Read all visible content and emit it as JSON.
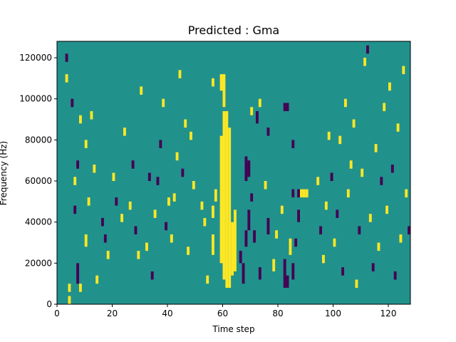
{
  "chart_data": {
    "type": "heatmap",
    "title": "Predicted : Gma",
    "xlabel": "Time step",
    "ylabel": "Frequency (Hz)",
    "xlim": [
      0,
      128
    ],
    "ylim": [
      0,
      128000
    ],
    "grid": false,
    "colormap": "viridis",
    "levels": [
      -1,
      0,
      1
    ],
    "level_colors": {
      "-1": "#440154",
      "0": "#21918c",
      "1": "#fde725"
    },
    "background_level": 0,
    "x_ticks": [
      0,
      20,
      40,
      60,
      80,
      100,
      120
    ],
    "x_tick_labels": [
      "0",
      "20",
      "40",
      "60",
      "80",
      "100",
      "120"
    ],
    "y_ticks": [
      0,
      20000,
      40000,
      60000,
      80000,
      100000,
      120000
    ],
    "y_tick_labels": [
      "0",
      "20000",
      "40000",
      "60000",
      "80000",
      "100000",
      "120000"
    ],
    "cells": [
      {
        "t": 60,
        "f0": 12000,
        "f1": 94000,
        "v": 1
      },
      {
        "t": 61,
        "f0": 8000,
        "f1": 94000,
        "v": 1
      },
      {
        "t": 62,
        "f0": 8000,
        "f1": 86000,
        "v": 1
      },
      {
        "t": 59,
        "f0": 20000,
        "f1": 82000,
        "v": 1
      },
      {
        "t": 63,
        "f0": 14000,
        "f1": 40000,
        "v": 1
      },
      {
        "t": 64,
        "f0": 16000,
        "f1": 46000,
        "v": 1
      },
      {
        "t": 59,
        "f0": 104000,
        "f1": 112000,
        "v": 1
      },
      {
        "t": 60,
        "f0": 96000,
        "f1": 112000,
        "v": 1
      },
      {
        "t": 56,
        "f0": 24000,
        "f1": 34000,
        "v": 1
      },
      {
        "t": 56,
        "f0": 42000,
        "f1": 48000,
        "v": 1
      },
      {
        "t": 57,
        "f0": 50000,
        "f1": 56000,
        "v": 1
      },
      {
        "t": 53,
        "f0": 38000,
        "f1": 42000,
        "v": 1
      },
      {
        "t": 49,
        "f0": 56000,
        "f1": 60000,
        "v": 1
      },
      {
        "t": 48,
        "f0": 80000,
        "f1": 84000,
        "v": 1
      },
      {
        "t": 52,
        "f0": 46000,
        "f1": 50000,
        "v": 1
      },
      {
        "t": 56,
        "f0": 106000,
        "f1": 110000,
        "v": 1
      },
      {
        "t": 54,
        "f0": 10000,
        "f1": 14000,
        "v": 1
      },
      {
        "t": 68,
        "f0": 28000,
        "f1": 36000,
        "v": -1
      },
      {
        "t": 68,
        "f0": 60000,
        "f1": 72000,
        "v": -1
      },
      {
        "t": 69,
        "f0": 62000,
        "f1": 70000,
        "v": -1
      },
      {
        "t": 69,
        "f0": 36000,
        "f1": 46000,
        "v": -1
      },
      {
        "t": 67,
        "f0": 10000,
        "f1": 20000,
        "v": -1
      },
      {
        "t": 70,
        "f0": 50000,
        "f1": 54000,
        "v": -1
      },
      {
        "t": 72,
        "f0": 88000,
        "f1": 94000,
        "v": -1
      },
      {
        "t": 71,
        "f0": 30000,
        "f1": 36000,
        "v": -1
      },
      {
        "t": 66,
        "f0": 20000,
        "f1": 26000,
        "v": -1
      },
      {
        "t": 73,
        "f0": 12000,
        "f1": 18000,
        "v": -1
      },
      {
        "t": 76,
        "f0": 34000,
        "f1": 42000,
        "v": -1
      },
      {
        "t": 82,
        "f0": 8000,
        "f1": 22000,
        "v": -1
      },
      {
        "t": 83,
        "f0": 8000,
        "f1": 14000,
        "v": -1
      },
      {
        "t": 85,
        "f0": 12000,
        "f1": 20000,
        "v": -1
      },
      {
        "t": 86,
        "f0": 28000,
        "f1": 32000,
        "v": -1
      },
      {
        "t": 87,
        "f0": 40000,
        "f1": 46000,
        "v": -1
      },
      {
        "t": 85,
        "f0": 52000,
        "f1": 56000,
        "v": -1
      },
      {
        "t": 87,
        "f0": 52000,
        "f1": 56000,
        "v": -1
      },
      {
        "t": 88,
        "f0": 52000,
        "f1": 56000,
        "v": 1
      },
      {
        "t": 89,
        "f0": 52000,
        "f1": 56000,
        "v": 1
      },
      {
        "t": 90,
        "f0": 52000,
        "f1": 56000,
        "v": 1
      },
      {
        "t": 82,
        "f0": 94000,
        "f1": 98000,
        "v": -1
      },
      {
        "t": 83,
        "f0": 94000,
        "f1": 98000,
        "v": -1
      },
      {
        "t": 76,
        "f0": 82000,
        "f1": 86000,
        "v": -1
      },
      {
        "t": 85,
        "f0": 76000,
        "f1": 80000,
        "v": -1
      },
      {
        "t": 73,
        "f0": 96000,
        "f1": 100000,
        "v": 1
      },
      {
        "t": 70,
        "f0": 92000,
        "f1": 96000,
        "v": 1
      },
      {
        "t": 75,
        "f0": 56000,
        "f1": 60000,
        "v": 1
      },
      {
        "t": 79,
        "f0": 32000,
        "f1": 36000,
        "v": 1
      },
      {
        "t": 78,
        "f0": 16000,
        "f1": 22000,
        "v": 1
      },
      {
        "t": 84,
        "f0": 24000,
        "f1": 32000,
        "v": 1
      },
      {
        "t": 81,
        "f0": 44000,
        "f1": 48000,
        "v": 1
      },
      {
        "t": 4,
        "f0": 6000,
        "f1": 10000,
        "v": 1
      },
      {
        "t": 4,
        "f0": 0,
        "f1": 4000,
        "v": 1
      },
      {
        "t": 3,
        "f0": 108000,
        "f1": 112000,
        "v": 1
      },
      {
        "t": 3,
        "f0": 118000,
        "f1": 122000,
        "v": -1
      },
      {
        "t": 5,
        "f0": 96000,
        "f1": 100000,
        "v": -1
      },
      {
        "t": 6,
        "f0": 58000,
        "f1": 62000,
        "v": 1
      },
      {
        "t": 7,
        "f0": 66000,
        "f1": 70000,
        "v": -1
      },
      {
        "t": 6,
        "f0": 44000,
        "f1": 48000,
        "v": -1
      },
      {
        "t": 7,
        "f0": 10000,
        "f1": 20000,
        "v": -1
      },
      {
        "t": 8,
        "f0": 88000,
        "f1": 92000,
        "v": 1
      },
      {
        "t": 8,
        "f0": 6000,
        "f1": 10000,
        "v": 1
      },
      {
        "t": 10,
        "f0": 76000,
        "f1": 80000,
        "v": 1
      },
      {
        "t": 10,
        "f0": 28000,
        "f1": 34000,
        "v": 1
      },
      {
        "t": 11,
        "f0": 48000,
        "f1": 52000,
        "v": 1
      },
      {
        "t": 12,
        "f0": 90000,
        "f1": 94000,
        "v": 1
      },
      {
        "t": 13,
        "f0": 64000,
        "f1": 68000,
        "v": 1
      },
      {
        "t": 14,
        "f0": 10000,
        "f1": 14000,
        "v": 1
      },
      {
        "t": 16,
        "f0": 38000,
        "f1": 42000,
        "v": -1
      },
      {
        "t": 17,
        "f0": 30000,
        "f1": 34000,
        "v": -1
      },
      {
        "t": 18,
        "f0": 22000,
        "f1": 26000,
        "v": 1
      },
      {
        "t": 20,
        "f0": 60000,
        "f1": 64000,
        "v": 1
      },
      {
        "t": 21,
        "f0": 48000,
        "f1": 52000,
        "v": -1
      },
      {
        "t": 23,
        "f0": 40000,
        "f1": 44000,
        "v": 1
      },
      {
        "t": 24,
        "f0": 82000,
        "f1": 86000,
        "v": 1
      },
      {
        "t": 26,
        "f0": 46000,
        "f1": 50000,
        "v": 1
      },
      {
        "t": 27,
        "f0": 66000,
        "f1": 70000,
        "v": -1
      },
      {
        "t": 28,
        "f0": 34000,
        "f1": 38000,
        "v": -1
      },
      {
        "t": 29,
        "f0": 22000,
        "f1": 26000,
        "v": 1
      },
      {
        "t": 30,
        "f0": 102000,
        "f1": 106000,
        "v": 1
      },
      {
        "t": 32,
        "f0": 26000,
        "f1": 30000,
        "v": 1
      },
      {
        "t": 33,
        "f0": 60000,
        "f1": 64000,
        "v": -1
      },
      {
        "t": 34,
        "f0": 12000,
        "f1": 16000,
        "v": -1
      },
      {
        "t": 35,
        "f0": 42000,
        "f1": 46000,
        "v": 1
      },
      {
        "t": 36,
        "f0": 58000,
        "f1": 62000,
        "v": -1
      },
      {
        "t": 37,
        "f0": 76000,
        "f1": 80000,
        "v": -1
      },
      {
        "t": 38,
        "f0": 96000,
        "f1": 100000,
        "v": 1
      },
      {
        "t": 39,
        "f0": 36000,
        "f1": 40000,
        "v": -1
      },
      {
        "t": 40,
        "f0": 48000,
        "f1": 52000,
        "v": 1
      },
      {
        "t": 41,
        "f0": 30000,
        "f1": 34000,
        "v": 1
      },
      {
        "t": 42,
        "f0": 50000,
        "f1": 54000,
        "v": 1
      },
      {
        "t": 43,
        "f0": 70000,
        "f1": 74000,
        "v": 1
      },
      {
        "t": 44,
        "f0": 110000,
        "f1": 114000,
        "v": 1
      },
      {
        "t": 45,
        "f0": 62000,
        "f1": 66000,
        "v": -1
      },
      {
        "t": 46,
        "f0": 86000,
        "f1": 90000,
        "v": 1
      },
      {
        "t": 47,
        "f0": 24000,
        "f1": 28000,
        "v": 1
      },
      {
        "t": 94,
        "f0": 58000,
        "f1": 62000,
        "v": 1
      },
      {
        "t": 95,
        "f0": 34000,
        "f1": 38000,
        "v": -1
      },
      {
        "t": 96,
        "f0": 20000,
        "f1": 24000,
        "v": 1
      },
      {
        "t": 97,
        "f0": 46000,
        "f1": 50000,
        "v": 1
      },
      {
        "t": 98,
        "f0": 80000,
        "f1": 84000,
        "v": 1
      },
      {
        "t": 99,
        "f0": 60000,
        "f1": 64000,
        "v": -1
      },
      {
        "t": 100,
        "f0": 28000,
        "f1": 32000,
        "v": 1
      },
      {
        "t": 101,
        "f0": 42000,
        "f1": 46000,
        "v": -1
      },
      {
        "t": 102,
        "f0": 78000,
        "f1": 82000,
        "v": 1
      },
      {
        "t": 103,
        "f0": 14000,
        "f1": 18000,
        "v": -1
      },
      {
        "t": 104,
        "f0": 96000,
        "f1": 100000,
        "v": 1
      },
      {
        "t": 105,
        "f0": 52000,
        "f1": 56000,
        "v": 1
      },
      {
        "t": 106,
        "f0": 66000,
        "f1": 70000,
        "v": 1
      },
      {
        "t": 107,
        "f0": 86000,
        "f1": 90000,
        "v": 1
      },
      {
        "t": 108,
        "f0": 8000,
        "f1": 12000,
        "v": 1
      },
      {
        "t": 109,
        "f0": 34000,
        "f1": 38000,
        "v": -1
      },
      {
        "t": 110,
        "f0": 62000,
        "f1": 66000,
        "v": 1
      },
      {
        "t": 111,
        "f0": 116000,
        "f1": 120000,
        "v": 1
      },
      {
        "t": 112,
        "f0": 122000,
        "f1": 126000,
        "v": -1
      },
      {
        "t": 113,
        "f0": 40000,
        "f1": 44000,
        "v": 1
      },
      {
        "t": 114,
        "f0": 16000,
        "f1": 20000,
        "v": -1
      },
      {
        "t": 115,
        "f0": 74000,
        "f1": 78000,
        "v": 1
      },
      {
        "t": 116,
        "f0": 26000,
        "f1": 30000,
        "v": 1
      },
      {
        "t": 117,
        "f0": 58000,
        "f1": 62000,
        "v": -1
      },
      {
        "t": 118,
        "f0": 94000,
        "f1": 98000,
        "v": 1
      },
      {
        "t": 119,
        "f0": 44000,
        "f1": 48000,
        "v": 1
      },
      {
        "t": 120,
        "f0": 104000,
        "f1": 108000,
        "v": 1
      },
      {
        "t": 121,
        "f0": 64000,
        "f1": 68000,
        "v": -1
      },
      {
        "t": 122,
        "f0": 12000,
        "f1": 16000,
        "v": -1
      },
      {
        "t": 123,
        "f0": 84000,
        "f1": 88000,
        "v": 1
      },
      {
        "t": 124,
        "f0": 30000,
        "f1": 34000,
        "v": 1
      },
      {
        "t": 125,
        "f0": 112000,
        "f1": 116000,
        "v": 1
      },
      {
        "t": 126,
        "f0": 52000,
        "f1": 56000,
        "v": 1
      },
      {
        "t": 127,
        "f0": 34000,
        "f1": 38000,
        "v": -1
      }
    ]
  }
}
